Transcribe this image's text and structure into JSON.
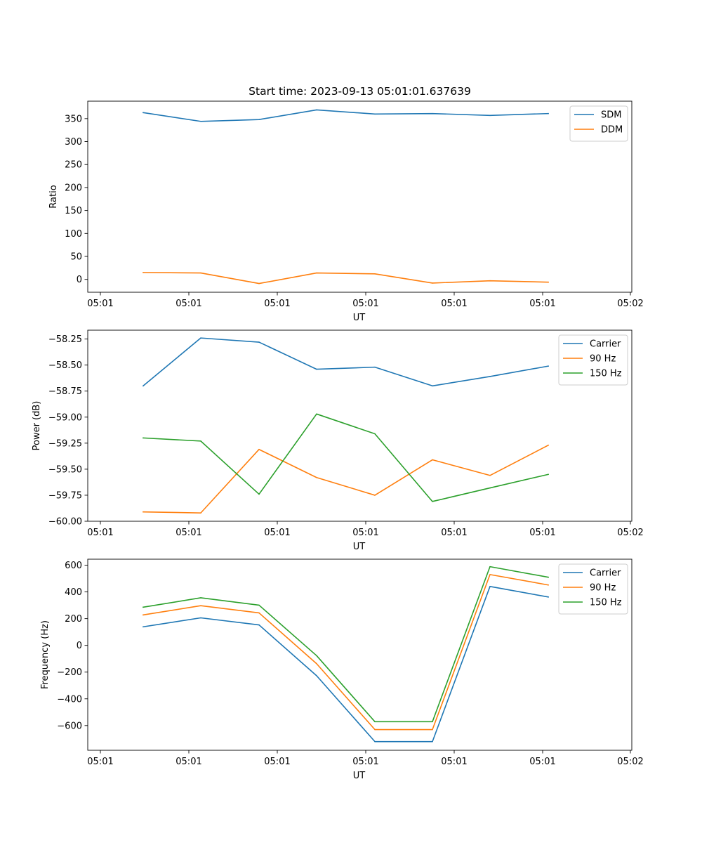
{
  "chart_data": [
    {
      "type": "line",
      "title": "Start time: 2023-09-13 05:01:01.637639",
      "xlabel": "UT",
      "ylabel": "Ratio",
      "xticks": [
        "05:01",
        "05:01",
        "05:01",
        "05:01",
        "05:01",
        "05:01",
        "05:02"
      ],
      "ylim": [
        -28,
        388
      ],
      "yticks": [
        0,
        50,
        100,
        150,
        200,
        250,
        300,
        350
      ],
      "legend": "top-right",
      "series": [
        {
          "name": "SDM",
          "color": "#1f77b4",
          "values": [
            363,
            344,
            348,
            369,
            360,
            361,
            357,
            361
          ]
        },
        {
          "name": "DDM",
          "color": "#ff7f0e",
          "values": [
            15,
            14,
            -9,
            14,
            12,
            -8,
            -3,
            -6
          ]
        }
      ]
    },
    {
      "type": "line",
      "title": "",
      "xlabel": "UT",
      "ylabel": "Power (dB)",
      "xticks": [
        "05:01",
        "05:01",
        "05:01",
        "05:01",
        "05:01",
        "05:01",
        "05:02"
      ],
      "ylim": [
        -60.0,
        -58.165
      ],
      "yticks": [
        -60.0,
        -59.75,
        -59.5,
        -59.25,
        -59.0,
        -58.75,
        -58.5,
        -58.25
      ],
      "ytick_labels": [
        "−60.00",
        "−59.75",
        "−59.50",
        "−59.25",
        "−59.00",
        "−58.75",
        "−58.50",
        "−58.25"
      ],
      "legend": "top-right",
      "series": [
        {
          "name": "Carrier",
          "color": "#1f77b4",
          "values": [
            -58.7,
            -58.24,
            -58.28,
            -58.54,
            -58.52,
            -58.7,
            -58.61,
            -58.51
          ]
        },
        {
          "name": "90 Hz",
          "color": "#ff7f0e",
          "values": [
            -59.91,
            -59.92,
            -59.31,
            -59.58,
            -59.75,
            -59.41,
            -59.56,
            -59.27
          ]
        },
        {
          "name": "150 Hz",
          "color": "#2ca02c",
          "values": [
            -59.2,
            -59.23,
            -59.74,
            -58.97,
            -59.16,
            -59.81,
            -59.68,
            -59.55
          ]
        }
      ]
    },
    {
      "type": "line",
      "title": "",
      "xlabel": "UT",
      "ylabel": "Frequency (Hz)",
      "xticks": [
        "05:01",
        "05:01",
        "05:01",
        "05:01",
        "05:01",
        "05:01",
        "05:02"
      ],
      "ylim": [
        -785,
        645
      ],
      "yticks": [
        -600,
        -400,
        -200,
        0,
        200,
        400,
        600
      ],
      "ytick_labels": [
        "−600",
        "−400",
        "−200",
        "0",
        "200",
        "400",
        "600"
      ],
      "legend": "top-right",
      "series": [
        {
          "name": "Carrier",
          "color": "#1f77b4",
          "values": [
            139,
            206,
            153,
            -227,
            -720,
            -720,
            441,
            362
          ]
        },
        {
          "name": "90 Hz",
          "color": "#ff7f0e",
          "values": [
            228,
            297,
            243,
            -137,
            -630,
            -630,
            530,
            452
          ]
        },
        {
          "name": "150 Hz",
          "color": "#2ca02c",
          "values": [
            286,
            356,
            301,
            -77,
            -571,
            -571,
            589,
            510
          ]
        }
      ]
    }
  ]
}
